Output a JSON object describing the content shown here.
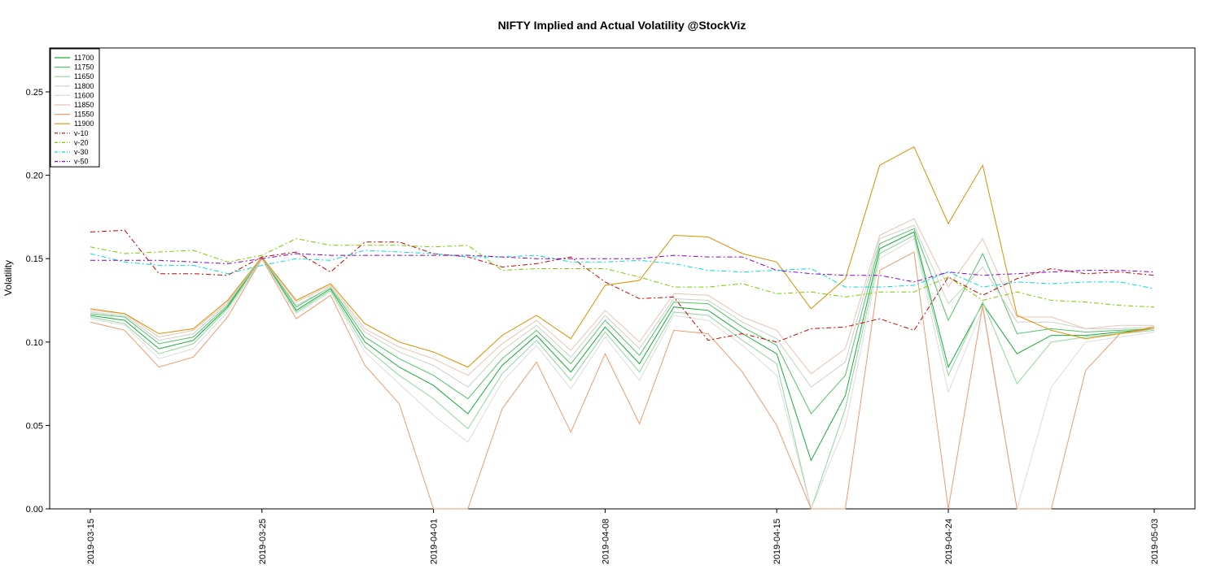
{
  "chart_data": {
    "type": "line",
    "title": "NIFTY Implied and Actual Volatility @StockViz",
    "ylabel": "Volatility",
    "xlabel": "",
    "ylim": [
      0,
      0.27
    ],
    "yticks": [
      "0.00",
      "0.05",
      "0.10",
      "0.15",
      "0.20",
      "0.25"
    ],
    "x": [
      "2019-03-15",
      "2019-03-18",
      "2019-03-19",
      "2019-03-20",
      "2019-03-22",
      "2019-03-25",
      "2019-03-26",
      "2019-03-27",
      "2019-03-28",
      "2019-03-29",
      "2019-04-01",
      "2019-04-02",
      "2019-04-03",
      "2019-04-04",
      "2019-04-05",
      "2019-04-08",
      "2019-04-09",
      "2019-04-10",
      "2019-04-11",
      "2019-04-12",
      "2019-04-15",
      "2019-04-16",
      "2019-04-18",
      "2019-04-22",
      "2019-04-23",
      "2019-04-24",
      "2019-04-25",
      "2019-04-26",
      "2019-04-29",
      "2019-04-30",
      "2019-05-02",
      "2019-05-03"
    ],
    "xticks": [
      "2019-03-15",
      "2019-03-25",
      "2019-04-01",
      "2019-04-08",
      "2019-04-15",
      "2019-04-24",
      "2019-05-03"
    ],
    "grid": false,
    "legend_position": "top-left",
    "series": [
      {
        "name": "11700",
        "color": "#1aaa3a",
        "dash": "",
        "values": [
          0.116,
          0.113,
          0.096,
          0.101,
          0.121,
          0.151,
          0.119,
          0.132,
          0.1,
          0.085,
          0.074,
          0.057,
          0.086,
          0.104,
          0.082,
          0.109,
          0.087,
          0.121,
          0.119,
          0.105,
          0.093,
          0.029,
          0.068,
          0.156,
          0.166,
          0.085,
          0.123,
          0.093,
          0.104,
          0.104,
          0.106,
          0.108
        ]
      },
      {
        "name": "11750",
        "color": "#55c26a",
        "dash": "",
        "values": [
          0.117,
          0.115,
          0.099,
          0.103,
          0.122,
          0.151,
          0.121,
          0.133,
          0.103,
          0.09,
          0.08,
          0.066,
          0.09,
          0.107,
          0.087,
          0.113,
          0.092,
          0.124,
          0.123,
          0.109,
          0.098,
          0.057,
          0.08,
          0.159,
          0.168,
          0.113,
          0.153,
          0.105,
          0.108,
          0.106,
          0.107,
          0.108
        ]
      },
      {
        "name": "11650",
        "color": "#8fd69c",
        "dash": "",
        "values": [
          0.115,
          0.111,
          0.093,
          0.099,
          0.12,
          0.15,
          0.118,
          0.131,
          0.097,
          0.08,
          0.066,
          0.048,
          0.081,
          0.101,
          0.077,
          0.106,
          0.082,
          0.118,
          0.116,
          0.101,
          0.087,
          0.0,
          0.06,
          0.153,
          0.164,
          0.08,
          0.124,
          0.075,
          0.1,
          0.103,
          0.105,
          0.107
        ]
      },
      {
        "name": "11800",
        "color": "#c9d3c9",
        "dash": "",
        "values": [
          0.118,
          0.116,
          0.101,
          0.105,
          0.123,
          0.151,
          0.122,
          0.133,
          0.106,
          0.094,
          0.086,
          0.073,
          0.095,
          0.11,
          0.091,
          0.116,
          0.096,
          0.126,
          0.125,
          0.112,
          0.102,
          0.073,
          0.088,
          0.162,
          0.17,
          0.123,
          0.145,
          0.112,
          0.112,
          0.108,
          0.108,
          0.109
        ]
      },
      {
        "name": "11600",
        "color": "#dcdcdc",
        "dash": "",
        "values": [
          0.114,
          0.11,
          0.09,
          0.096,
          0.118,
          0.15,
          0.117,
          0.13,
          0.094,
          0.075,
          0.056,
          0.04,
          0.076,
          0.098,
          0.072,
          0.103,
          0.077,
          0.116,
          0.113,
          0.098,
          0.08,
          0.0,
          0.05,
          0.15,
          0.162,
          0.07,
          0.12,
          0.0,
          0.073,
          0.1,
          0.103,
          0.106
        ]
      },
      {
        "name": "11850",
        "color": "#e8c4b4",
        "dash": "",
        "values": [
          0.119,
          0.117,
          0.103,
          0.107,
          0.124,
          0.151,
          0.124,
          0.134,
          0.108,
          0.097,
          0.09,
          0.08,
          0.099,
          0.113,
          0.095,
          0.119,
          0.1,
          0.129,
          0.128,
          0.115,
          0.107,
          0.081,
          0.096,
          0.164,
          0.174,
          0.133,
          0.162,
          0.115,
          0.115,
          0.108,
          0.11,
          0.11
        ]
      },
      {
        "name": "11550",
        "color": "#ee9b6e",
        "dash": "",
        "values": [
          0.112,
          0.107,
          0.085,
          0.091,
          0.115,
          0.15,
          0.114,
          0.128,
          0.086,
          0.063,
          0.0,
          0.0,
          0.06,
          0.088,
          0.046,
          0.093,
          0.051,
          0.107,
          0.105,
          0.082,
          0.05,
          0.0,
          0.0,
          0.143,
          0.154,
          0.0,
          0.122,
          0.0,
          0.0,
          0.083,
          0.105,
          0.108
        ]
      },
      {
        "name": "11900",
        "color": "#d89000",
        "dash": "",
        "values": [
          0.12,
          0.117,
          0.105,
          0.108,
          0.125,
          0.151,
          0.125,
          0.135,
          0.111,
          0.1,
          0.094,
          0.085,
          0.104,
          0.116,
          0.102,
          0.134,
          0.137,
          0.164,
          0.163,
          0.153,
          0.148,
          0.12,
          0.138,
          0.206,
          0.217,
          0.171,
          0.206,
          0.116,
          0.107,
          0.102,
          0.105,
          0.109
        ]
      },
      {
        "name": "v-10",
        "color": "#cc0000",
        "dash": "6,3,2,3",
        "values": [
          0.166,
          0.167,
          0.141,
          0.141,
          0.14,
          0.151,
          0.154,
          0.142,
          0.16,
          0.16,
          0.153,
          0.151,
          0.145,
          0.147,
          0.151,
          0.136,
          0.126,
          0.127,
          0.101,
          0.105,
          0.1,
          0.108,
          0.109,
          0.114,
          0.107,
          0.139,
          0.128,
          0.138,
          0.144,
          0.141,
          0.142,
          0.14
        ]
      },
      {
        "name": "v-20",
        "color": "#7acc00",
        "dash": "6,3,2,3",
        "values": [
          0.157,
          0.153,
          0.154,
          0.155,
          0.148,
          0.152,
          0.162,
          0.158,
          0.158,
          0.158,
          0.157,
          0.158,
          0.143,
          0.144,
          0.144,
          0.144,
          0.139,
          0.133,
          0.133,
          0.135,
          0.129,
          0.13,
          0.127,
          0.13,
          0.13,
          0.139,
          0.125,
          0.13,
          0.125,
          0.124,
          0.122,
          0.121
        ]
      },
      {
        "name": "v-30",
        "color": "#00dddd",
        "dash": "6,3,2,3",
        "values": [
          0.153,
          0.148,
          0.146,
          0.146,
          0.141,
          0.146,
          0.15,
          0.149,
          0.155,
          0.154,
          0.153,
          0.151,
          0.151,
          0.152,
          0.148,
          0.148,
          0.149,
          0.147,
          0.143,
          0.142,
          0.143,
          0.144,
          0.133,
          0.133,
          0.134,
          0.142,
          0.133,
          0.136,
          0.135,
          0.136,
          0.136,
          0.132
        ]
      },
      {
        "name": "v-50",
        "color": "#8800cc",
        "dash": "6,3,2,3",
        "values": [
          0.149,
          0.149,
          0.149,
          0.148,
          0.147,
          0.15,
          0.153,
          0.152,
          0.152,
          0.152,
          0.152,
          0.152,
          0.151,
          0.15,
          0.15,
          0.15,
          0.15,
          0.152,
          0.151,
          0.151,
          0.143,
          0.141,
          0.14,
          0.14,
          0.136,
          0.142,
          0.14,
          0.141,
          0.142,
          0.143,
          0.143,
          0.142
        ]
      }
    ]
  }
}
